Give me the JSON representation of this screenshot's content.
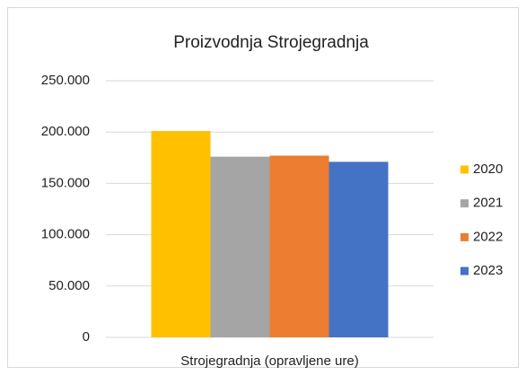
{
  "chart_data": {
    "type": "bar",
    "title": "Proizvodnja  Strojegradnja",
    "categories": [
      "Strojegradnja (opravljene ure)"
    ],
    "series": [
      {
        "name": "2020",
        "color": "#ffc000",
        "values": [
          201000
        ]
      },
      {
        "name": "2021",
        "color": "#a5a5a5",
        "values": [
          176000
        ]
      },
      {
        "name": "2022",
        "color": "#ed7d31",
        "values": [
          177000
        ]
      },
      {
        "name": "2023",
        "color": "#4472c4",
        "values": [
          171000
        ]
      }
    ],
    "ylim": [
      0,
      250000
    ],
    "yticks": [
      0,
      {
        "value": 50000,
        "label": "50.000"
      },
      {
        "value": 100000,
        "label": "100.000"
      },
      {
        "value": 150000,
        "label": "150.000"
      },
      {
        "value": 200000,
        "label": "200.000"
      },
      {
        "value": 250000,
        "label": "250.000"
      }
    ],
    "grid": true,
    "legend": "right"
  }
}
